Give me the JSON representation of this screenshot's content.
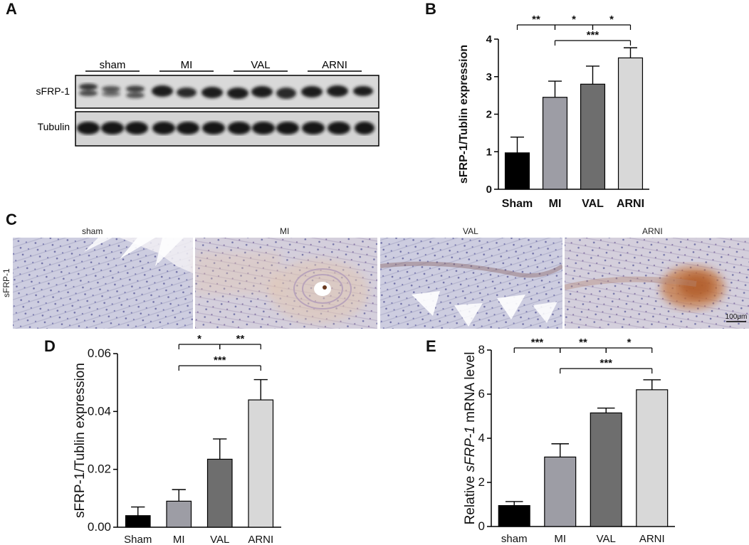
{
  "panels": {
    "A": "A",
    "B": "B",
    "C": "C",
    "D": "D",
    "E": "E"
  },
  "blot": {
    "groups": [
      "sham",
      "MI",
      "VAL",
      "ARNI"
    ],
    "rows": [
      "sFRP-1",
      "Tubulin"
    ]
  },
  "micrographs": {
    "titles": [
      "sham",
      "MI",
      "VAL",
      "ARNI"
    ],
    "row_label": "sFRP-1",
    "scale_bar": "100μm"
  },
  "chart_data": [
    {
      "id": "B",
      "type": "bar",
      "categories": [
        "Sham",
        "MI",
        "VAL",
        "ARNI"
      ],
      "values": [
        0.97,
        2.45,
        2.8,
        3.5
      ],
      "errors": [
        0.42,
        0.43,
        0.48,
        0.27
      ],
      "colors": [
        "#000000",
        "#9d9da5",
        "#6e6e6e",
        "#d8d8d8"
      ],
      "ylabel": "sFRP-1/Tublin expression",
      "xlabel": "",
      "ylim": [
        0,
        4
      ],
      "yticks": [
        "0",
        "1",
        "2",
        "3",
        "4"
      ],
      "significance": [
        {
          "from": 0,
          "to": 1,
          "label": "**"
        },
        {
          "from": 1,
          "to": 2,
          "label": "*"
        },
        {
          "from": 2,
          "to": 3,
          "label": "*"
        },
        {
          "from": 1,
          "to": 3,
          "label": "***"
        }
      ]
    },
    {
      "id": "D",
      "type": "bar",
      "categories": [
        "Sham",
        "MI",
        "VAL",
        "ARNI"
      ],
      "values": [
        0.004,
        0.009,
        0.0235,
        0.044
      ],
      "errors": [
        0.003,
        0.004,
        0.007,
        0.007
      ],
      "colors": [
        "#000000",
        "#9d9da5",
        "#6e6e6e",
        "#d8d8d8"
      ],
      "ylabel": "sFRP-1/Tublin expression",
      "xlabel": "",
      "ylim": [
        0,
        0.06
      ],
      "yticks": [
        "0.00",
        "0.02",
        "0.04",
        "0.06"
      ],
      "significance": [
        {
          "from": 1,
          "to": 2,
          "label": "*"
        },
        {
          "from": 2,
          "to": 3,
          "label": "**"
        },
        {
          "from": 1,
          "to": 3,
          "label": "***"
        }
      ]
    },
    {
      "id": "E",
      "type": "bar",
      "categories": [
        "sham",
        "MI",
        "VAL",
        "ARNI"
      ],
      "values": [
        0.95,
        3.15,
        5.15,
        6.2
      ],
      "errors": [
        0.18,
        0.6,
        0.22,
        0.45
      ],
      "colors": [
        "#000000",
        "#9d9da5",
        "#6e6e6e",
        "#d8d8d8"
      ],
      "ylabel_prefix": "Relative ",
      "ylabel_italic": "sFRP-1",
      "ylabel_suffix": " mRNA level",
      "xlabel": "",
      "ylim": [
        0,
        8
      ],
      "yticks": [
        "0",
        "2",
        "4",
        "6",
        "8"
      ],
      "significance": [
        {
          "from": 0,
          "to": 1,
          "label": "***"
        },
        {
          "from": 1,
          "to": 2,
          "label": "**"
        },
        {
          "from": 2,
          "to": 3,
          "label": "*"
        },
        {
          "from": 1,
          "to": 3,
          "label": "***"
        }
      ]
    }
  ]
}
